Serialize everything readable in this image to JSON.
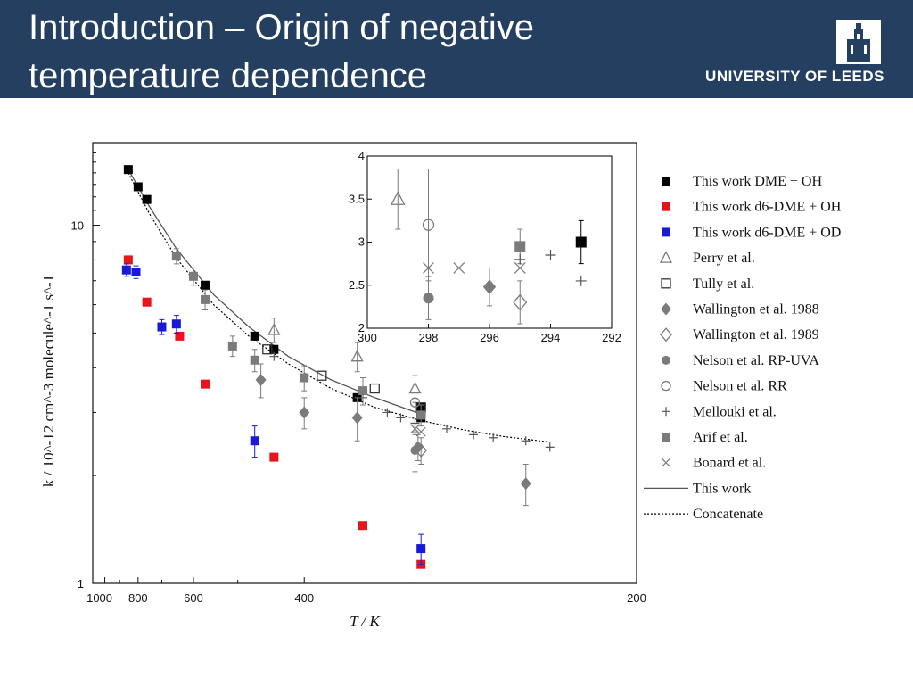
{
  "slide": {
    "title_line1": "Introduction – Origin of negative",
    "title_line2": "temperature dependence",
    "logo_text": "UNIVERSITY OF LEEDS"
  },
  "colors": {
    "header_bg": "#243f60",
    "red": "#e8141c",
    "blue": "#1a1ad6",
    "grey": "#7b7b7b",
    "black": "#000000"
  },
  "chart_data": [
    {
      "type": "scatter",
      "title": "",
      "xlabel": "T / K",
      "ylabel": "k / 10^-12 cm^-3 molecule^-1 s^-1",
      "xscale": "reciprocal",
      "yscale": "log",
      "xlim": [
        1100,
        200
      ],
      "ylim": [
        1,
        17
      ],
      "xticks": [
        {
          "v": 1000,
          "label": "1000"
        },
        {
          "v": 800,
          "label": "800"
        },
        {
          "v": 600,
          "label": "600"
        },
        {
          "v": 400,
          "label": "400"
        },
        {
          "v": 200,
          "label": "200"
        }
      ],
      "yticks": [
        {
          "v": 1,
          "label": "1"
        },
        {
          "v": 10,
          "label": "10"
        }
      ],
      "legend": [
        {
          "key": "dme_oh",
          "label": "This work DME + OH",
          "marker": "square",
          "color": "#000000"
        },
        {
          "key": "d6_oh",
          "label": "This work d6-DME + OH",
          "marker": "square",
          "color": "#e8141c"
        },
        {
          "key": "d6_od",
          "label": "This work d6-DME + OD",
          "marker": "square",
          "color": "#1a1ad6"
        },
        {
          "key": "perry",
          "label": "Perry et al.",
          "marker": "triangle-open",
          "color": "#7b7b7b"
        },
        {
          "key": "tully",
          "label": "Tully et al.",
          "marker": "square-open",
          "color": "#333333"
        },
        {
          "key": "wall88",
          "label": "Wallington et al. 1988",
          "marker": "diamond",
          "color": "#7b7b7b"
        },
        {
          "key": "wall89",
          "label": "Wallington et al. 1989",
          "marker": "diamond-open",
          "color": "#7b7b7b"
        },
        {
          "key": "nelson_uva",
          "label": "Nelson et al. RP-UVA",
          "marker": "circle",
          "color": "#7b7b7b"
        },
        {
          "key": "nelson_rr",
          "label": "Nelson et al. RR",
          "marker": "circle-open",
          "color": "#7b7b7b"
        },
        {
          "key": "mellouki",
          "label": "Mellouki et al.",
          "marker": "plus",
          "color": "#555555"
        },
        {
          "key": "arif",
          "label": "Arif et al.",
          "marker": "square",
          "color": "#7b7b7b"
        },
        {
          "key": "bonard",
          "label": "Bonard et al.",
          "marker": "cross",
          "color": "#7b7b7b"
        },
        {
          "key": "fit",
          "label": "This work",
          "marker": "line-solid",
          "color": "#555555"
        },
        {
          "key": "concat",
          "label": "Concatenate",
          "marker": "line-dotted",
          "color": "#000000"
        }
      ],
      "series": [
        {
          "key": "dme_oh",
          "points": [
            {
              "x": 850,
              "y": 14.3
            },
            {
              "x": 800,
              "y": 12.8
            },
            {
              "x": 760,
              "y": 11.8
            },
            {
              "x": 570,
              "y": 6.8
            },
            {
              "x": 470,
              "y": 4.9
            },
            {
              "x": 440,
              "y": 4.5
            },
            {
              "x": 345,
              "y": 3.3
            },
            {
              "x": 296,
              "y": 3.0
            },
            {
              "x": 296,
              "y": 3.1
            },
            {
              "x": 296,
              "y": 2.9
            }
          ]
        },
        {
          "key": "d6_oh",
          "points": [
            {
              "x": 850,
              "y": 8.0
            },
            {
              "x": 760,
              "y": 6.1
            },
            {
              "x": 640,
              "y": 4.9
            },
            {
              "x": 570,
              "y": 3.6
            },
            {
              "x": 440,
              "y": 2.25
            },
            {
              "x": 340,
              "y": 1.45
            },
            {
              "x": 296,
              "y": 1.13
            }
          ]
        },
        {
          "key": "d6_od",
          "points": [
            {
              "x": 860,
              "y": 7.5,
              "err": 0.3
            },
            {
              "x": 810,
              "y": 7.4,
              "err": 0.3
            },
            {
              "x": 700,
              "y": 5.2,
              "err": 0.25
            },
            {
              "x": 650,
              "y": 5.3,
              "err": 0.3
            },
            {
              "x": 470,
              "y": 2.5,
              "err": 0.25
            },
            {
              "x": 296,
              "y": 1.25,
              "err": 0.12
            }
          ]
        },
        {
          "key": "perry",
          "points": [
            {
              "x": 440,
              "y": 5.1,
              "err": 0.4
            },
            {
              "x": 345,
              "y": 4.3,
              "err": 0.4
            },
            {
              "x": 300,
              "y": 3.5,
              "err": 0.3
            }
          ]
        },
        {
          "key": "tully",
          "points": [
            {
              "x": 450,
              "y": 4.5
            },
            {
              "x": 380,
              "y": 3.8
            },
            {
              "x": 330,
              "y": 3.5
            },
            {
              "x": 296,
              "y": 3.1
            }
          ]
        },
        {
          "key": "wall88",
          "points": [
            {
              "x": 460,
              "y": 3.7,
              "err": 0.4
            },
            {
              "x": 400,
              "y": 3.0,
              "err": 0.3
            },
            {
              "x": 345,
              "y": 2.9,
              "err": 0.4
            },
            {
              "x": 298,
              "y": 2.4,
              "err": 0.2
            },
            {
              "x": 240,
              "y": 1.9,
              "err": 0.25
            }
          ]
        },
        {
          "key": "wall89",
          "points": [
            {
              "x": 296,
              "y": 2.35,
              "err": 0.2
            }
          ]
        },
        {
          "key": "nelson_uva",
          "points": [
            {
              "x": 300,
              "y": 2.35,
              "err": 0.3
            }
          ]
        },
        {
          "key": "nelson_rr",
          "points": [
            {
              "x": 300,
              "y": 3.2,
              "err": 0.6
            }
          ]
        },
        {
          "key": "mellouki",
          "points": [
            {
              "x": 440,
              "y": 4.3
            },
            {
              "x": 340,
              "y": 3.3
            },
            {
              "x": 320,
              "y": 3.0
            },
            {
              "x": 310,
              "y": 2.9
            },
            {
              "x": 300,
              "y": 2.8
            },
            {
              "x": 280,
              "y": 2.7
            },
            {
              "x": 265,
              "y": 2.6
            },
            {
              "x": 255,
              "y": 2.55
            },
            {
              "x": 240,
              "y": 2.5
            },
            {
              "x": 230,
              "y": 2.4
            }
          ]
        },
        {
          "key": "arif",
          "points": [
            {
              "x": 650,
              "y": 8.2,
              "err": 0.4
            },
            {
              "x": 600,
              "y": 7.2,
              "err": 0.4
            },
            {
              "x": 570,
              "y": 6.2,
              "err": 0.4
            },
            {
              "x": 510,
              "y": 4.6,
              "err": 0.3
            },
            {
              "x": 470,
              "y": 4.2,
              "err": 0.3
            },
            {
              "x": 400,
              "y": 3.75,
              "err": 0.3
            },
            {
              "x": 340,
              "y": 3.45,
              "err": 0.3
            },
            {
              "x": 296,
              "y": 2.95,
              "err": 0.2
            }
          ]
        },
        {
          "key": "bonard",
          "points": [
            {
              "x": 300,
              "y": 2.7
            },
            {
              "x": 296,
              "y": 2.65
            }
          ]
        }
      ],
      "fit_curve": {
        "key": "fit",
        "points": [
          {
            "x": 850,
            "y": 14.3
          },
          {
            "x": 750,
            "y": 11.3
          },
          {
            "x": 650,
            "y": 8.6
          },
          {
            "x": 550,
            "y": 6.4
          },
          {
            "x": 480,
            "y": 5.2
          },
          {
            "x": 420,
            "y": 4.3
          },
          {
            "x": 370,
            "y": 3.7
          },
          {
            "x": 330,
            "y": 3.3
          },
          {
            "x": 296,
            "y": 2.97
          }
        ]
      },
      "concat_curve": {
        "key": "concat",
        "points": [
          {
            "x": 850,
            "y": 14.0
          },
          {
            "x": 750,
            "y": 10.8
          },
          {
            "x": 650,
            "y": 8.1
          },
          {
            "x": 550,
            "y": 6.0
          },
          {
            "x": 480,
            "y": 4.9
          },
          {
            "x": 420,
            "y": 4.1
          },
          {
            "x": 370,
            "y": 3.5
          },
          {
            "x": 330,
            "y": 3.1
          },
          {
            "x": 296,
            "y": 2.85
          },
          {
            "x": 270,
            "y": 2.68
          },
          {
            "x": 250,
            "y": 2.57
          },
          {
            "x": 230,
            "y": 2.48
          }
        ]
      }
    },
    {
      "type": "scatter",
      "title": "inset",
      "xlabel": "",
      "ylabel": "",
      "xlim": [
        300,
        292
      ],
      "ylim": [
        2,
        4
      ],
      "xticks": [
        {
          "v": 300,
          "label": "300"
        },
        {
          "v": 298,
          "label": "298"
        },
        {
          "v": 296,
          "label": "296"
        },
        {
          "v": 294,
          "label": "294"
        },
        {
          "v": 292,
          "label": "292"
        }
      ],
      "yticks": [
        {
          "v": 2,
          "label": "2"
        },
        {
          "v": 2.5,
          "label": "2.5"
        },
        {
          "v": 3,
          "label": "3"
        },
        {
          "v": 3.5,
          "label": "3.5"
        },
        {
          "v": 4,
          "label": "4"
        }
      ],
      "series": [
        {
          "key": "perry",
          "points": [
            {
              "x": 299,
              "y": 3.5,
              "err": 0.35
            }
          ]
        },
        {
          "key": "nelson_rr",
          "points": [
            {
              "x": 298,
              "y": 3.2,
              "err": 0.65
            }
          ]
        },
        {
          "key": "nelson_uva",
          "points": [
            {
              "x": 298,
              "y": 2.35,
              "err": 0.25
            }
          ]
        },
        {
          "key": "bonard",
          "points": [
            {
              "x": 298,
              "y": 2.7
            },
            {
              "x": 297,
              "y": 2.7
            },
            {
              "x": 295,
              "y": 2.7
            }
          ]
        },
        {
          "key": "wall88",
          "points": [
            {
              "x": 296,
              "y": 2.48,
              "err": 0.22
            }
          ]
        },
        {
          "key": "wall89",
          "points": [
            {
              "x": 295,
              "y": 2.3,
              "err": 0.25
            }
          ]
        },
        {
          "key": "arif",
          "points": [
            {
              "x": 295,
              "y": 2.95,
              "err": 0.2
            }
          ]
        },
        {
          "key": "mellouki",
          "points": [
            {
              "x": 295,
              "y": 2.8
            },
            {
              "x": 294,
              "y": 2.85
            },
            {
              "x": 293,
              "y": 2.55
            }
          ]
        },
        {
          "key": "dme_oh",
          "points": [
            {
              "x": 293,
              "y": 3.0,
              "err": 0.25
            }
          ]
        }
      ]
    }
  ]
}
